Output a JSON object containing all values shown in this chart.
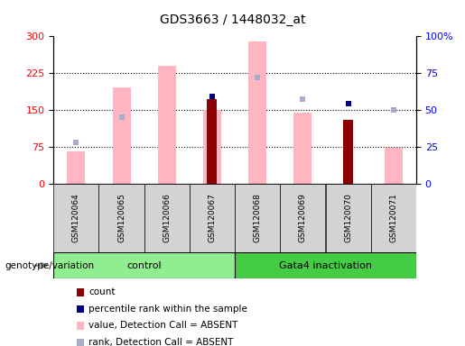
{
  "title": "GDS3663 / 1448032_at",
  "samples": [
    "GSM120064",
    "GSM120065",
    "GSM120066",
    "GSM120067",
    "GSM120068",
    "GSM120069",
    "GSM120070",
    "GSM120071"
  ],
  "absent_value_bars": [
    65,
    195,
    240,
    150,
    290,
    145,
    null,
    72
  ],
  "absent_rank_markers_pct": [
    28,
    45,
    null,
    null,
    72,
    57,
    null,
    50
  ],
  "count_bars": [
    null,
    null,
    null,
    172,
    null,
    null,
    130,
    null
  ],
  "percentile_rank_markers_pct": [
    null,
    null,
    null,
    59,
    null,
    null,
    54,
    null
  ],
  "left_ylim": [
    0,
    300
  ],
  "right_ylim": [
    0,
    100
  ],
  "left_yticks": [
    0,
    75,
    150,
    225,
    300
  ],
  "right_yticks": [
    0,
    25,
    50,
    75,
    100
  ],
  "right_yticklabels": [
    "0",
    "25",
    "50",
    "75",
    "100%"
  ],
  "color_absent_bar": "#FFB6C1",
  "color_absent_rank": "#AAAACC",
  "color_count": "#8B0000",
  "color_percentile": "#000080",
  "bar_width": 0.4,
  "group_control_color": "#90EE90",
  "group_gata4_color": "#44CC44",
  "legend_labels": [
    "count",
    "percentile rank within the sample",
    "value, Detection Call = ABSENT",
    "rank, Detection Call = ABSENT"
  ],
  "legend_colors": [
    "#8B0000",
    "#000080",
    "#FFB6C1",
    "#AAAACC"
  ]
}
